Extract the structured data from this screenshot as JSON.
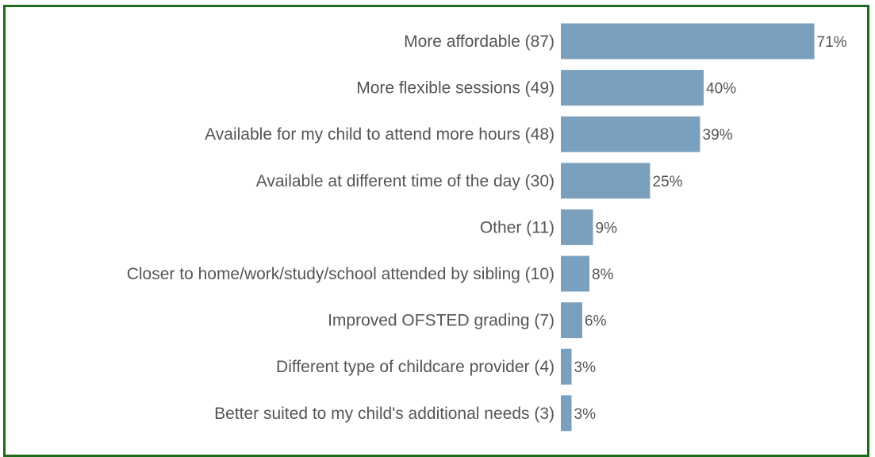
{
  "chart_data": {
    "type": "bar",
    "orientation": "horizontal",
    "title": "",
    "xlabel": "",
    "ylabel": "",
    "grid": false,
    "legend": "none",
    "bar_color": "#7aa0be",
    "frame_color": "#1e6b1e",
    "text_color": "#555555",
    "xlim": [
      0,
      100
    ],
    "categories": [
      "More affordable (87)",
      "More flexible sessions (49)",
      "Available for my child to attend more hours (48)",
      "Available at different time of the day (30)",
      "Other (11)",
      "Closer to home/work/study/school attended by sibling (10)",
      "Improved OFSTED grading (7)",
      "Different type of childcare provider (4)",
      "Better suited to my child's additional needs (3)"
    ],
    "values": [
      71,
      40,
      39,
      25,
      9,
      8,
      6,
      3,
      3
    ],
    "value_labels": [
      "71%",
      "40%",
      "39%",
      "25%",
      "9%",
      "8%",
      "6%",
      "3%",
      "3%"
    ]
  }
}
